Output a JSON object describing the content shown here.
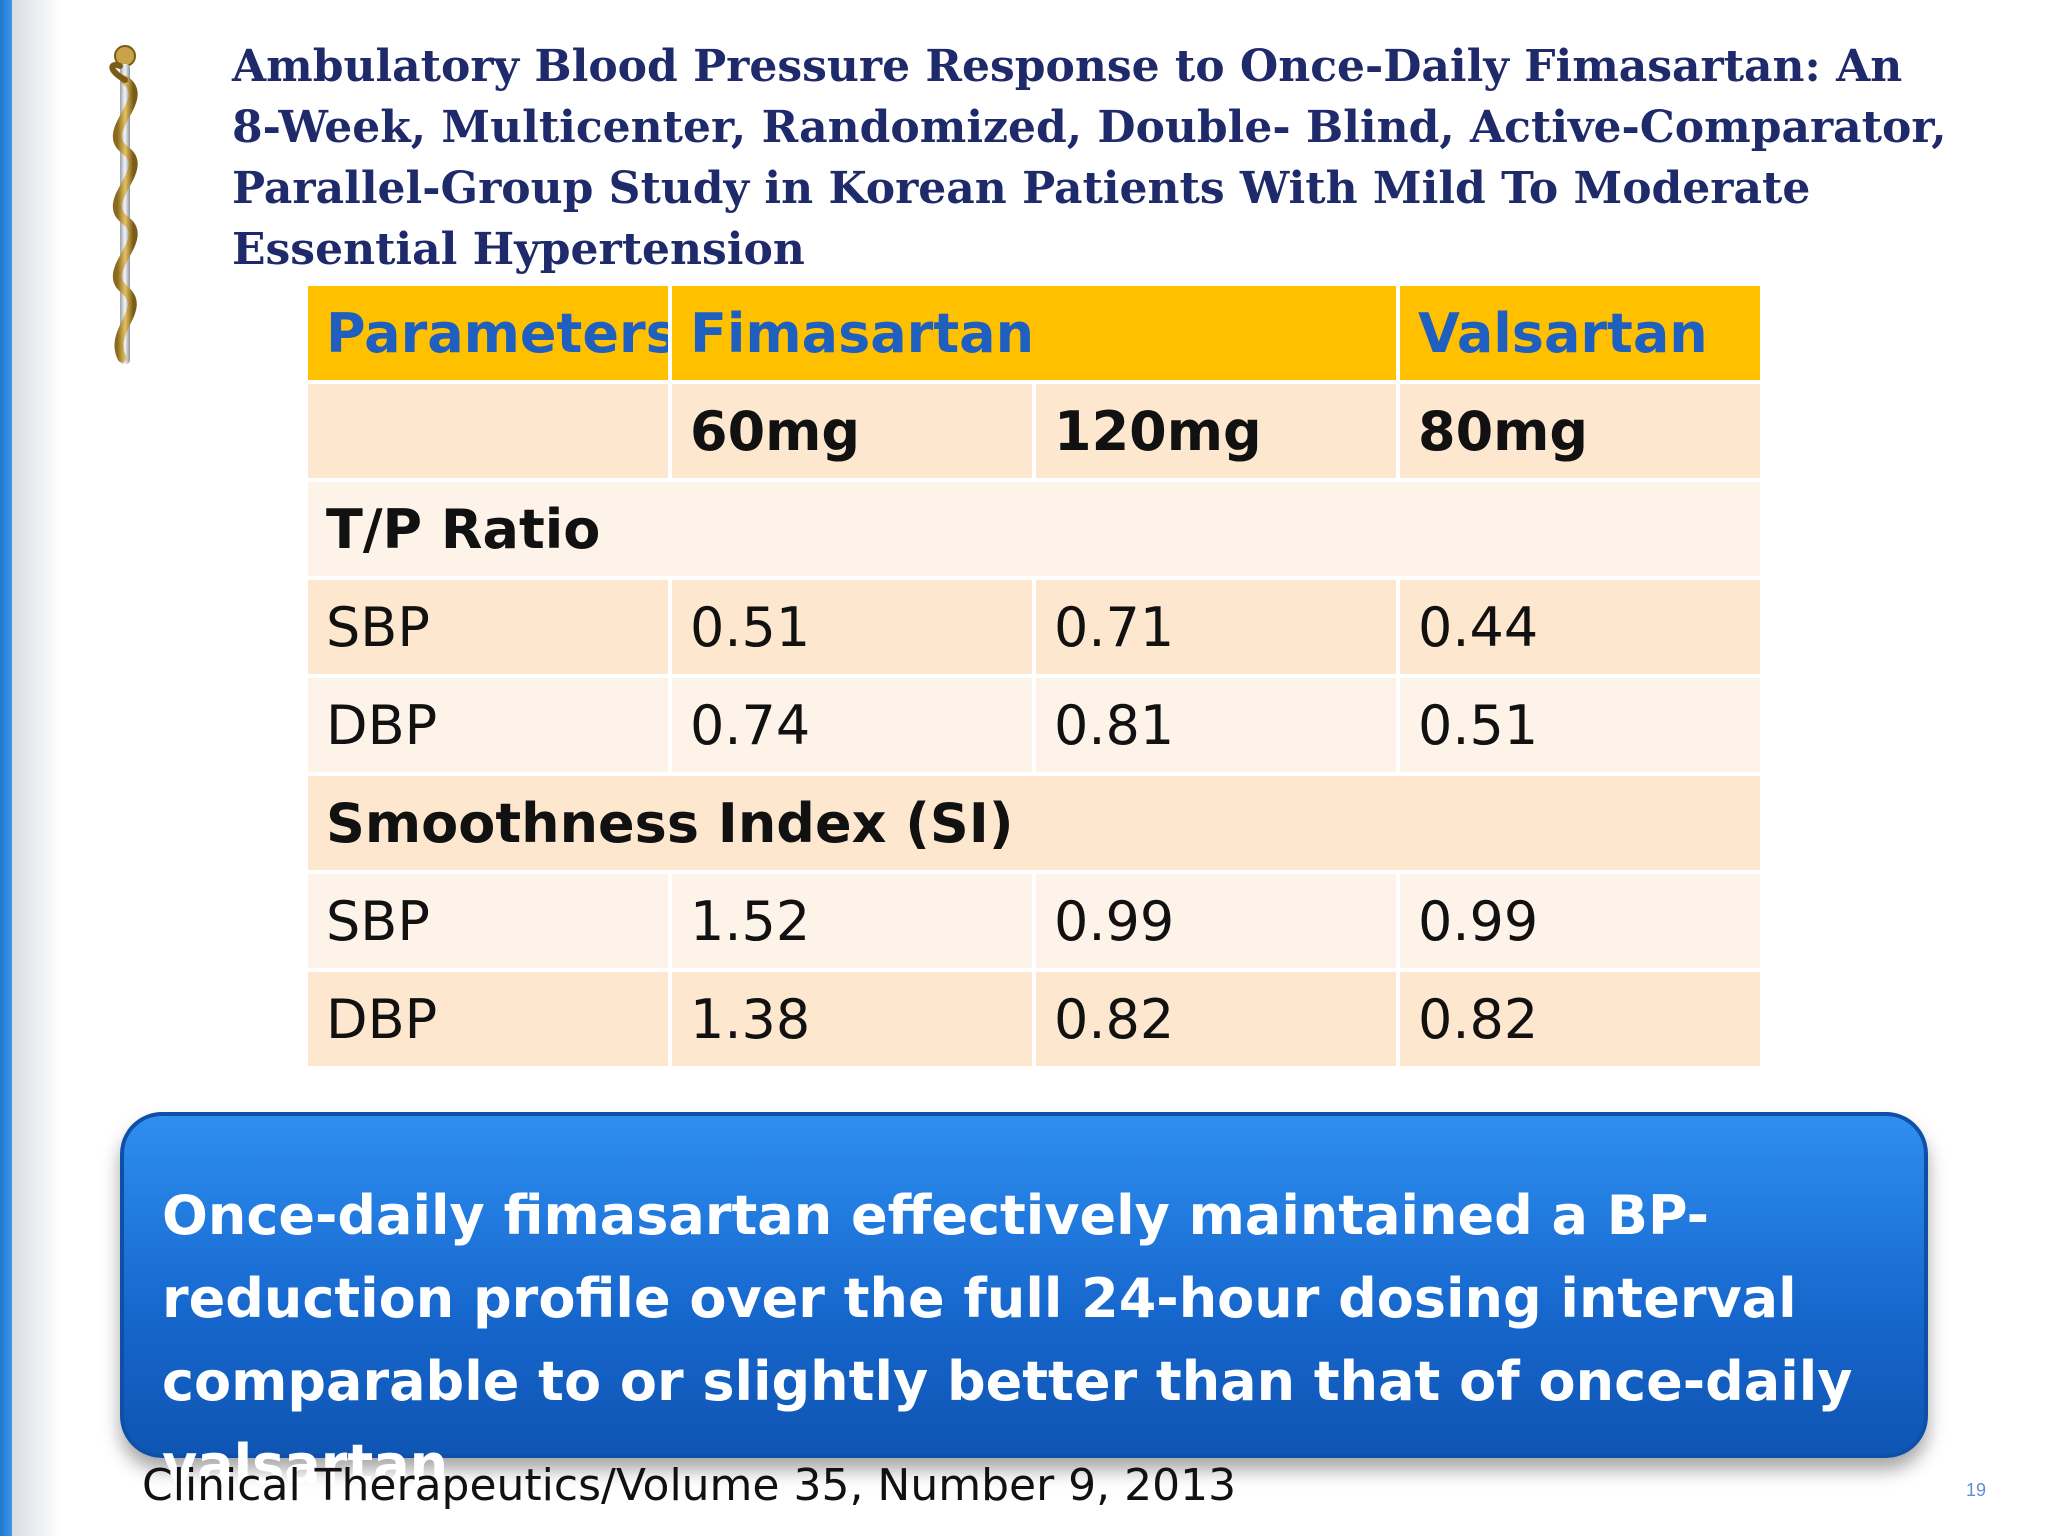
{
  "title": "Ambulatory Blood Pressure Response to Once-Daily Fimasartan: An 8-Week, Multicenter, Randomized, Double- Blind, Active-Comparator, Parallel-Group Study in Korean Patients With Mild To Moderate Essential Hypertension",
  "icons": {
    "logo": "caduceus-icon"
  },
  "colors": {
    "header_bg": "#ffc000",
    "header_text": "#1f5fbf",
    "title_text": "#1f2a6b",
    "callout_bg": "#1666cc",
    "row_odd": "#fde7cf",
    "row_even": "#fef3e8"
  },
  "table": {
    "header": {
      "parameters": "Parameters",
      "fimasartan": "Fimasartan",
      "valsartan": "Valsartan"
    },
    "doses": {
      "fima_60": "60mg",
      "fima_120": "120mg",
      "valsartan_80": "80mg"
    },
    "sections": [
      {
        "label": "T/P Ratio",
        "rows": [
          {
            "param": "SBP",
            "fima_60": "0.51",
            "fima_120": "0.71",
            "valsartan_80": "0.44"
          },
          {
            "param": "DBP",
            "fima_60": "0.74",
            "fima_120": "0.81",
            "valsartan_80": "0.51"
          }
        ]
      },
      {
        "label": "Smoothness Index (SI)",
        "rows": [
          {
            "param": "SBP",
            "fima_60": "1.52",
            "fima_120": "0.99",
            "valsartan_80": "0.99"
          },
          {
            "param": "DBP",
            "fima_60": "1.38",
            "fima_120": "0.82",
            "valsartan_80": "0.82"
          }
        ]
      }
    ]
  },
  "callout": "Once-daily fimasartan effectively maintained a BP-reduction profile over the full 24-hour dosing interval comparable to or slightly better than that of once-daily valsartan",
  "citation": "Clinical Therapeutics/Volume 35, Number 9, 2013",
  "page_number": "19"
}
